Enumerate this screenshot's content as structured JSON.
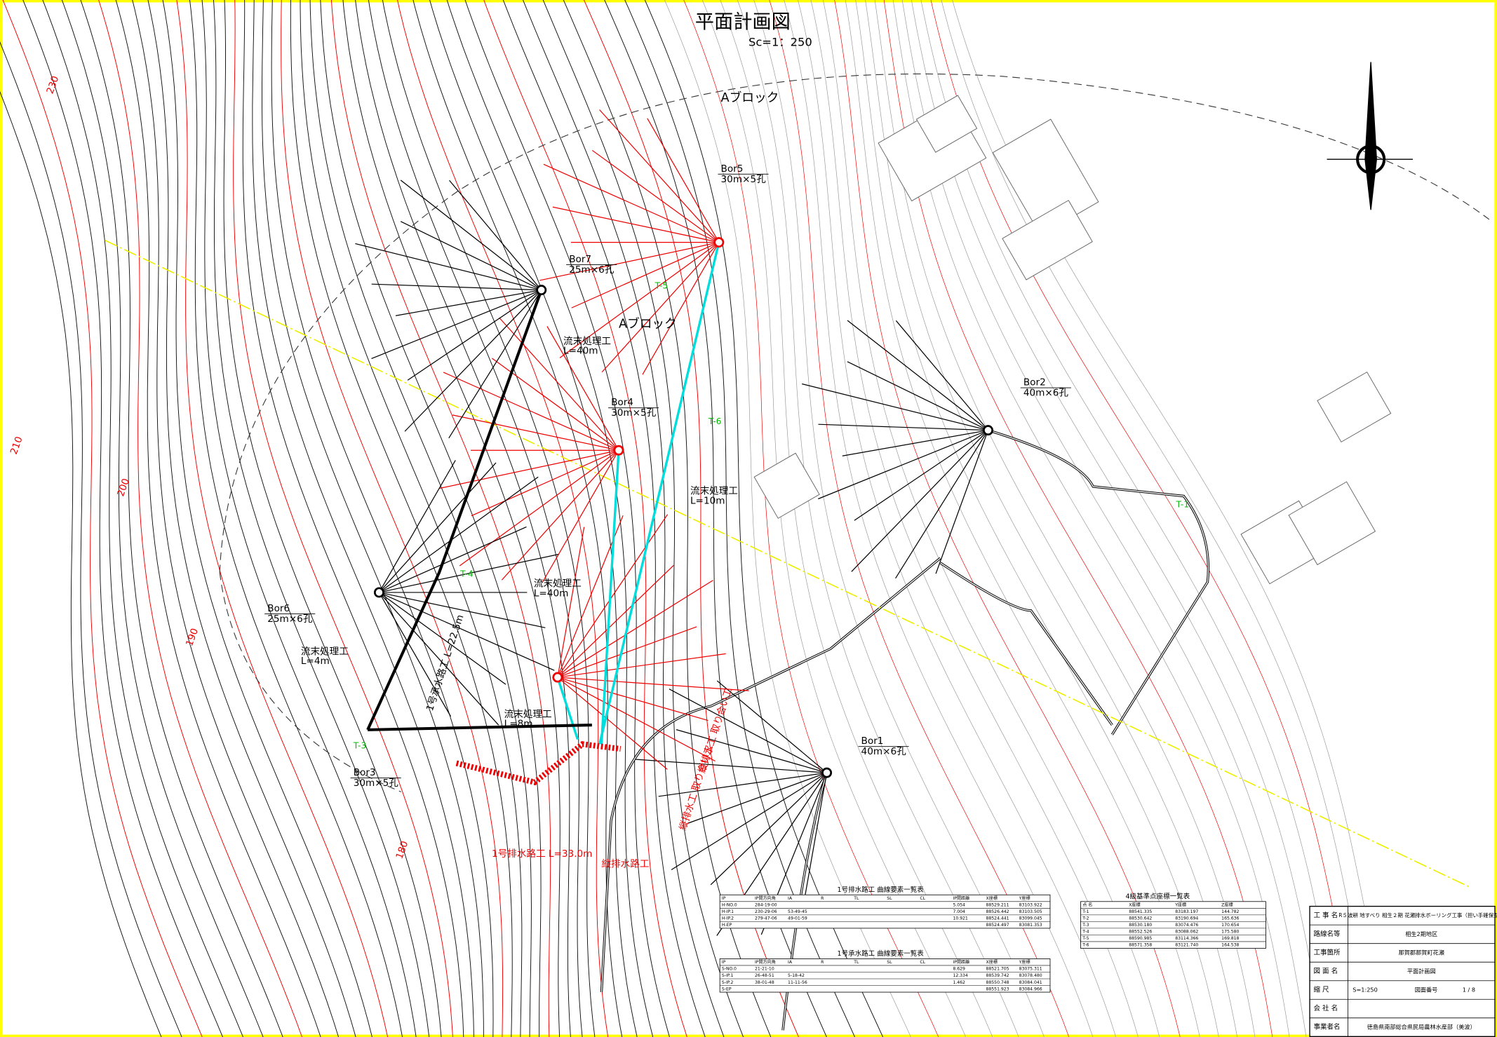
{
  "header": {
    "title": "平面計画図",
    "scale": "Sc=1：250"
  },
  "blocks": [
    "Aブロック",
    "Aブロック"
  ],
  "borings": [
    {
      "name": "Bor1",
      "spec": "40m×6孔"
    },
    {
      "name": "Bor2",
      "spec": "40m×6孔"
    },
    {
      "name": "Bor3",
      "spec": "30m×5孔"
    },
    {
      "name": "Bor4",
      "spec": "30m×5孔"
    },
    {
      "name": "Bor5",
      "spec": "30m×5孔"
    },
    {
      "name": "Bor6",
      "spec": "25m×6孔"
    },
    {
      "name": "Bor7",
      "spec": "25m×6孔"
    }
  ],
  "works": [
    {
      "name": "流末処理工",
      "length": "L=40m"
    },
    {
      "name": "流末処理工",
      "length": "L=10m"
    },
    {
      "name": "流末処理工",
      "length": "L=40m"
    },
    {
      "name": "流末処理工",
      "length": "L=4m"
    },
    {
      "name": "流末処理工",
      "length": "L=8m"
    }
  ],
  "channels": [
    "1号承水路工 L=22.5m",
    "1号排水路工 L=33.0m",
    "縦排水路工",
    "縦排水工 取り合い工",
    "縦排水工 取り合い工"
  ],
  "contours": [
    "230",
    "210",
    "200",
    "190",
    "180"
  ],
  "points": [
    "T-1",
    "T-3",
    "T-4",
    "T-5",
    "T-6"
  ],
  "curve_tables": [
    {
      "title": "1号排水路工 曲線要素一覧表",
      "header": [
        "IP",
        "IP間方向角",
        "IA",
        "R",
        "TL",
        "SL",
        "CL",
        "IP間距離",
        "X座標",
        "Y座標"
      ],
      "rows": [
        [
          "H-NO.0",
          "284-19-00",
          "",
          "",
          "",
          "",
          "",
          "5.054",
          "88529.211",
          "83103.922"
        ],
        [
          "H-IP.1",
          "230-29-06",
          "53-49-45",
          "",
          "",
          "",
          "",
          "7.004",
          "88526.442",
          "83103.505"
        ],
        [
          "H-IP.2",
          "279-47-06",
          "49-01-59",
          "",
          "",
          "",
          "",
          "10.921",
          "88524.441",
          "83099.045"
        ],
        [
          "H-EP",
          "",
          "",
          "",
          "",
          "",
          "",
          "",
          "88524.497",
          "83081.353"
        ]
      ]
    },
    {
      "title": "1号承水路工 曲線要素一覧表",
      "header": [
        "IP",
        "IP間方向角",
        "IA",
        "R",
        "TL",
        "SL",
        "CL",
        "IP間距離",
        "X座標",
        "Y座標"
      ],
      "rows": [
        [
          "S-NO.0",
          "21-21-10",
          "",
          "",
          "",
          "",
          "",
          "8.629",
          "88521.705",
          "83075.311"
        ],
        [
          "S-IP.1",
          "26-48-51",
          "5-18-42",
          "",
          "",
          "",
          "",
          "12.334",
          "88539.742",
          "83078.480"
        ],
        [
          "S-IP.2",
          "38-01-48",
          "11-11-56",
          "",
          "",
          "",
          "",
          "1.462",
          "88550.748",
          "83084.041"
        ],
        [
          "S-EP",
          "",
          "",
          "",
          "",
          "",
          "",
          "",
          "88551.923",
          "83084.966"
        ]
      ]
    }
  ],
  "reference_table": {
    "title": "4級基準点座標一覧表",
    "header": [
      "点 名",
      "X座標",
      "Y座標",
      "Z座標"
    ],
    "rows": [
      [
        "T-1",
        "88541.335",
        "83183.197",
        "144.782"
      ],
      [
        "T-2",
        "88530.642",
        "83190.694",
        "165.636"
      ],
      [
        "T-3",
        "88530.180",
        "83074.476",
        "170.654"
      ],
      [
        "T-4",
        "88552.526",
        "83088.062",
        "175.580"
      ],
      [
        "T-5",
        "88590.985",
        "83114.366",
        "169.818"
      ],
      [
        "T-6",
        "88571.358",
        "83121.740",
        "164.538"
      ]
    ]
  },
  "title_block": [
    [
      "工 事 名",
      "R５波耕 地すべり 相生２期 花瀬排水ボーリング工事（担い手確保型）"
    ],
    [
      "路線名等",
      "相生2期地区"
    ],
    [
      "工事箇所",
      "那賀郡那賀町花瀬"
    ],
    [
      "図 面 名",
      "平面計画図"
    ],
    [
      "縮 尺",
      "S=1:250",
      "図面番号",
      "1 / 8"
    ],
    [
      "会 社 名"
    ],
    [
      "事業者名",
      "徳島県南部総合県民局農林水産部（美波）"
    ]
  ]
}
